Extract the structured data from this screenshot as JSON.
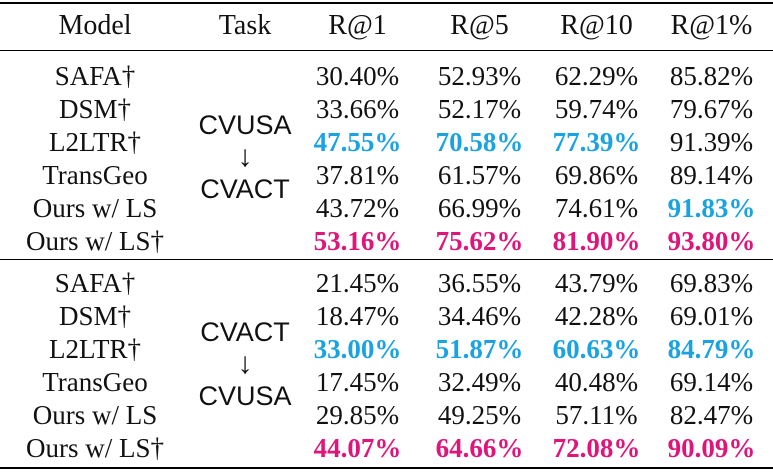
{
  "header": {
    "model": "Model",
    "task": "Task",
    "r1": "R@1",
    "r5": "R@5",
    "r10": "R@10",
    "r1p": "R@1%"
  },
  "groups": [
    {
      "task_from": "CVUSA",
      "arrow": "↓",
      "task_to": "CVACT",
      "rows": [
        {
          "model": "SAFA†",
          "r1": "30.40%",
          "r5": "52.93%",
          "r10": "62.29%",
          "r1p": "85.82%"
        },
        {
          "model": "DSM†",
          "r1": "33.66%",
          "r5": "52.17%",
          "r10": "59.74%",
          "r1p": "79.67%"
        },
        {
          "model": "L2LTR†",
          "r1": "47.55%",
          "r5": "70.58%",
          "r10": "77.39%",
          "r1p": "91.39%"
        },
        {
          "model": "TransGeo",
          "r1": "37.81%",
          "r5": "61.57%",
          "r10": "69.86%",
          "r1p": "89.14%"
        },
        {
          "model": "Ours w/ LS",
          "r1": "43.72%",
          "r5": "66.99%",
          "r10": "74.61%",
          "r1p": "91.83%"
        },
        {
          "model": "Ours w/ LS†",
          "r1": "53.16%",
          "r5": "75.62%",
          "r10": "81.90%",
          "r1p": "93.80%"
        }
      ]
    },
    {
      "task_from": "CVACT",
      "arrow": "↓",
      "task_to": "CVUSA",
      "rows": [
        {
          "model": "SAFA†",
          "r1": "21.45%",
          "r5": "36.55%",
          "r10": "43.79%",
          "r1p": "69.83%"
        },
        {
          "model": "DSM†",
          "r1": "18.47%",
          "r5": "34.46%",
          "r10": "42.28%",
          "r1p": "69.01%"
        },
        {
          "model": "L2LTR†",
          "r1": "33.00%",
          "r5": "51.87%",
          "r10": "60.63%",
          "r1p": "84.79%"
        },
        {
          "model": "TransGeo",
          "r1": "17.45%",
          "r5": "32.49%",
          "r10": "40.48%",
          "r1p": "69.14%"
        },
        {
          "model": "Ours w/ LS",
          "r1": "29.85%",
          "r5": "49.25%",
          "r10": "57.11%",
          "r1p": "82.47%"
        },
        {
          "model": "Ours w/ LS†",
          "r1": "44.07%",
          "r5": "64.66%",
          "r10": "72.08%",
          "r1p": "90.09%"
        }
      ]
    }
  ],
  "colors": {
    "best": "#e0157a",
    "second": "#1aa3e0"
  }
}
